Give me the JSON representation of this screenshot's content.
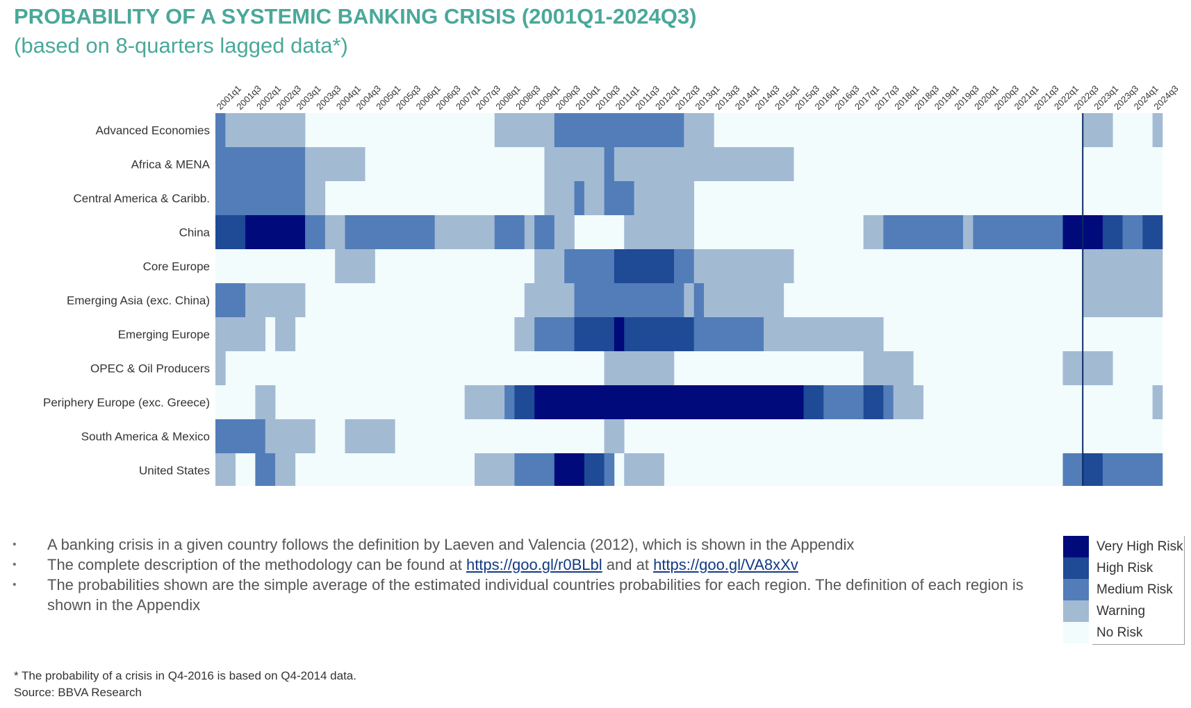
{
  "title": "PROBABILITY OF A SYSTEMIC BANKING CRISIS (2001Q1-2024Q3)",
  "subtitle": "(based on 8-quarters lagged data*)",
  "notes": {
    "n1": "A banking crisis in a given country follows the definition by Laeven and Valencia (2012), which is shown in the Appendix",
    "n2_pre": "The complete description of the methodology can be found at",
    "link1": "https://goo.gl/r0BLbl",
    "n2_mid": "and at",
    "link2": "https://goo.gl/VA8xXv",
    "n3": "The probabilities shown are the simple average of the estimated individual countries probabilities for each region. The definition of each region is shown in the Appendix"
  },
  "footnote": "* The probability of a crisis in Q4-2016 is based on Q4-2014 data.",
  "source": "Source: BBVA Research",
  "legend": [
    {
      "label": "Very High Risk",
      "color": "#000a7a"
    },
    {
      "label": "High Risk",
      "color": "#1e4a96"
    },
    {
      "label": "Medium Risk",
      "color": "#527db8"
    },
    {
      "label": "Warning",
      "color": "#a3bad3"
    },
    {
      "label": "No Risk",
      "color": "#f2fcfd"
    }
  ],
  "chart_data": {
    "type": "heatmap",
    "levels": [
      "No Risk",
      "Warning",
      "Medium Risk",
      "High Risk",
      "Very High Risk"
    ],
    "level_colors": [
      "#f2fcfd",
      "#a3bad3",
      "#527db8",
      "#1e4a96",
      "#000a7a"
    ],
    "x_start": "2001q1",
    "x_end": "2024q3",
    "tick_labels": [
      "2001q1",
      "2001q3",
      "2002q1",
      "2002q3",
      "2003q1",
      "2003q3",
      "2004q1",
      "2004q3",
      "2005q1",
      "2005q3",
      "2006q1",
      "2006q3",
      "2007q1",
      "2007q3",
      "2008q1",
      "2008q3",
      "2009q1",
      "2009q3",
      "2010q1",
      "2010q3",
      "2011q1",
      "2011q3",
      "2012q1",
      "2012q3",
      "2013q1",
      "2013q3",
      "2014q1",
      "2014q3",
      "2015q1",
      "2015q3",
      "2016q1",
      "2016q3",
      "2017q1",
      "2017q3",
      "2018q1",
      "2018q3",
      "2019q1",
      "2019q3",
      "2020q1",
      "2020q3",
      "2021q1",
      "2021q3",
      "2022q1",
      "2022q3",
      "2023q1",
      "2023q3",
      "2024q1",
      "2024q3"
    ],
    "vertical_line_at": "2022q4",
    "regions": [
      {
        "name": "Advanced Economies",
        "runs": [
          [
            "2001q1",
            "2001q1",
            2
          ],
          [
            "2001q2",
            "2003q1",
            1
          ],
          [
            "2008q1",
            "2009q2",
            1
          ],
          [
            "2009q3",
            "2012q3",
            2
          ],
          [
            "2012q4",
            "2013q2",
            1
          ],
          [
            "2022q4",
            "2023q2",
            1
          ],
          [
            "2024q3",
            "2024q3",
            1
          ]
        ]
      },
      {
        "name": "Africa & MENA",
        "runs": [
          [
            "2001q1",
            "2003q1",
            2
          ],
          [
            "2003q2",
            "2004q3",
            1
          ],
          [
            "2009q2",
            "2010q3",
            1
          ],
          [
            "2010q4",
            "2010q4",
            2
          ],
          [
            "2011q1",
            "2015q2",
            1
          ]
        ]
      },
      {
        "name": "Central America & Caribb.",
        "runs": [
          [
            "2001q1",
            "2003q1",
            2
          ],
          [
            "2003q2",
            "2003q3",
            1
          ],
          [
            "2009q2",
            "2009q4",
            1
          ],
          [
            "2010q1",
            "2010q1",
            2
          ],
          [
            "2010q2",
            "2010q3",
            1
          ],
          [
            "2010q4",
            "2011q2",
            2
          ],
          [
            "2011q3",
            "2012q4",
            1
          ]
        ]
      },
      {
        "name": "China",
        "runs": [
          [
            "2001q1",
            "2001q3",
            3
          ],
          [
            "2001q4",
            "2003q1",
            4
          ],
          [
            "2003q2",
            "2003q3",
            2
          ],
          [
            "2003q4",
            "2004q1",
            1
          ],
          [
            "2004q2",
            "2006q2",
            2
          ],
          [
            "2006q3",
            "2007q4",
            1
          ],
          [
            "2008q1",
            "2008q3",
            2
          ],
          [
            "2008q4",
            "2008q4",
            1
          ],
          [
            "2009q1",
            "2009q2",
            2
          ],
          [
            "2009q3",
            "2009q4",
            1
          ],
          [
            "2011q2",
            "2012q4",
            1
          ],
          [
            "2017q2",
            "2017q3",
            1
          ],
          [
            "2017q4",
            "2019q3",
            2
          ],
          [
            "2019q4",
            "2019q4",
            1
          ],
          [
            "2020q1",
            "2022q1",
            2
          ],
          [
            "2022q2",
            "2023q1",
            4
          ],
          [
            "2023q2",
            "2023q3",
            3
          ],
          [
            "2023q4",
            "2024q1",
            2
          ],
          [
            "2024q2",
            "2024q3",
            3
          ]
        ]
      },
      {
        "name": "Core Europe",
        "runs": [
          [
            "2004q1",
            "2004q4",
            1
          ],
          [
            "2009q1",
            "2009q3",
            1
          ],
          [
            "2009q4",
            "2010q4",
            2
          ],
          [
            "2011q1",
            "2012q2",
            3
          ],
          [
            "2012q3",
            "2012q4",
            2
          ],
          [
            "2013q1",
            "2015q2",
            1
          ],
          [
            "2022q4",
            "2024q3",
            1
          ]
        ]
      },
      {
        "name": "Emerging Asia (exc. China)",
        "runs": [
          [
            "2001q1",
            "2001q3",
            2
          ],
          [
            "2001q4",
            "2003q1",
            1
          ],
          [
            "2008q4",
            "2009q4",
            1
          ],
          [
            "2010q1",
            "2012q3",
            2
          ],
          [
            "2012q4",
            "2012q4",
            1
          ],
          [
            "2013q1",
            "2013q1",
            2
          ],
          [
            "2013q2",
            "2015q1",
            1
          ],
          [
            "2022q4",
            "2024q3",
            1
          ]
        ]
      },
      {
        "name": "Emerging Europe",
        "runs": [
          [
            "2001q1",
            "2002q1",
            1
          ],
          [
            "2002q3",
            "2002q4",
            1
          ],
          [
            "2008q3",
            "2008q4",
            1
          ],
          [
            "2009q1",
            "2009q4",
            2
          ],
          [
            "2010q1",
            "2010q4",
            3
          ],
          [
            "2011q1",
            "2011q1",
            4
          ],
          [
            "2011q2",
            "2012q4",
            3
          ],
          [
            "2013q1",
            "2014q3",
            2
          ],
          [
            "2014q4",
            "2017q3",
            1
          ]
        ]
      },
      {
        "name": "OPEC & Oil Producers",
        "runs": [
          [
            "2001q1",
            "2001q1",
            1
          ],
          [
            "2010q4",
            "2012q2",
            1
          ],
          [
            "2017q2",
            "2018q2",
            1
          ],
          [
            "2022q2",
            "2023q2",
            1
          ]
        ]
      },
      {
        "name": "Periphery Europe (exc. Greece)",
        "runs": [
          [
            "2002q1",
            "2002q2",
            1
          ],
          [
            "2007q2",
            "2008q1",
            1
          ],
          [
            "2008q2",
            "2008q2",
            2
          ],
          [
            "2008q3",
            "2008q4",
            3
          ],
          [
            "2009q1",
            "2015q3",
            4
          ],
          [
            "2015q4",
            "2016q1",
            3
          ],
          [
            "2016q2",
            "2017q1",
            2
          ],
          [
            "2017q2",
            "2017q3",
            3
          ],
          [
            "2017q4",
            "2017q4",
            2
          ],
          [
            "2018q1",
            "2018q3",
            1
          ],
          [
            "2024q3",
            "2024q3",
            1
          ]
        ]
      },
      {
        "name": "South America & Mexico",
        "runs": [
          [
            "2001q1",
            "2002q1",
            2
          ],
          [
            "2002q2",
            "2003q2",
            1
          ],
          [
            "2004q2",
            "2005q2",
            1
          ],
          [
            "2010q4",
            "2011q1",
            1
          ]
        ]
      },
      {
        "name": "United States",
        "runs": [
          [
            "2001q1",
            "2001q2",
            1
          ],
          [
            "2002q1",
            "2002q2",
            2
          ],
          [
            "2002q3",
            "2002q4",
            1
          ],
          [
            "2007q3",
            "2008q2",
            1
          ],
          [
            "2008q3",
            "2009q2",
            2
          ],
          [
            "2009q3",
            "2010q1",
            4
          ],
          [
            "2010q2",
            "2010q3",
            3
          ],
          [
            "2010q4",
            "2010q4",
            2
          ],
          [
            "2011q2",
            "2012q1",
            1
          ],
          [
            "2022q2",
            "2022q3",
            2
          ],
          [
            "2022q4",
            "2023q1",
            3
          ],
          [
            "2023q2",
            "2024q3",
            2
          ]
        ]
      }
    ]
  }
}
